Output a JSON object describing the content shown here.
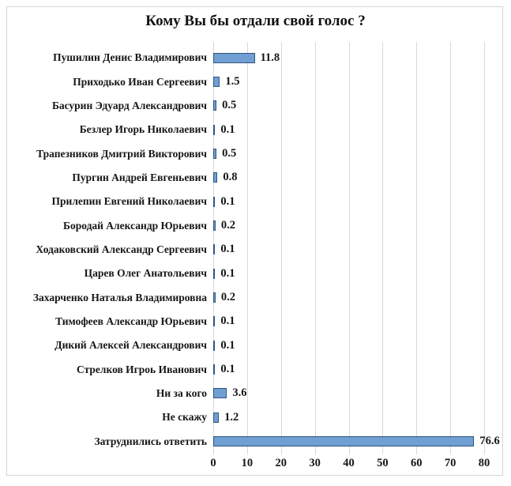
{
  "title": "Кому Вы бы отдали свой голос ?",
  "chart_data": {
    "type": "bar",
    "orientation": "horizontal",
    "title": "Кому Вы бы отдали свой голос ?",
    "categories": [
      "Пушилин Денис Владимирович",
      "Приходько Иван Сергеевич",
      "Басурин Эдуард Александрович",
      "Безлер Игорь Николаевич",
      "Трапезников Дмитрий Викторович",
      "Пургин Андрей Евгеньевич",
      "Прилепин Евгений Николаевич",
      "Бородай Александр Юрьевич",
      "Ходаковский Александр Сергеевич",
      "Царев Олег Анатольевич",
      "Захарченко Наталья Владимировна",
      "Тимофеев Александр Юрьевич",
      "Дикий Алексей Александрович",
      "Стрелков Игроь Иванович",
      "Ни за кого",
      "Не скажу",
      "Затруднились ответить"
    ],
    "values": [
      11.8,
      1.5,
      0.5,
      0.1,
      0.5,
      0.8,
      0.1,
      0.2,
      0.1,
      0.1,
      0.2,
      0.1,
      0.1,
      0.1,
      3.6,
      1.2,
      76.6
    ],
    "value_labels": [
      "11.8",
      "1.5",
      "0.5",
      "0.1",
      "0.5",
      "0.8",
      "0.1",
      "0.2",
      "0.1",
      "0.1",
      "0.2",
      "0.1",
      "0.1",
      "0.1",
      "3.6",
      "1.2",
      "76.6"
    ],
    "xlabel": "",
    "ylabel": "",
    "xlim": [
      0,
      80
    ],
    "x_ticks": [
      "0",
      "10",
      "20",
      "30",
      "40",
      "50",
      "60",
      "70",
      "80"
    ],
    "grid": "vertical",
    "legend": "none",
    "colors": {
      "bar_fill": "#6f9fd3",
      "bar_border": "#31557f",
      "gridline": "#d9d9d9",
      "text": "#161616",
      "frame_border": "#d4d4d4",
      "background": "#ffffff"
    }
  }
}
